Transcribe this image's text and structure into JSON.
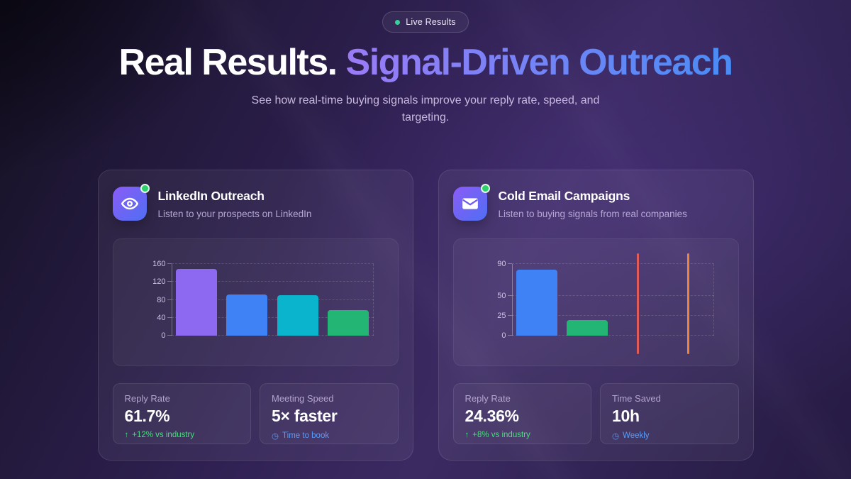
{
  "badge": {
    "label": "Live Results",
    "dot_color": "#34d399"
  },
  "heading": {
    "white_part": "Real Results.",
    "gradient_part": "Signal-Driven Outreach",
    "gradient_from": "#9b7bf7",
    "gradient_to": "#4a8cf5"
  },
  "subtitle": "See how real-time buying signals improve your reply rate, speed, and targeting.",
  "cards": [
    {
      "icon": "eye-icon",
      "status_color": "#2fd06b",
      "title": "LinkedIn Outreach",
      "subtitle": "Listen to your prospects on LinkedIn",
      "chart": {
        "type": "bar",
        "yticks": [
          0,
          40,
          80,
          120,
          160
        ],
        "ymax": 160,
        "items": [
          {
            "kind": "bar",
            "value": 150,
            "color": "#8c69f0"
          },
          {
            "kind": "bar",
            "value": 92,
            "color": "#3e82f5"
          },
          {
            "kind": "bar",
            "value": 91,
            "color": "#0ab4cd"
          },
          {
            "kind": "bar",
            "value": 57,
            "color": "#22b573"
          }
        ]
      },
      "stats": [
        {
          "label": "Reply Rate",
          "value": "61.7%",
          "note": "+12% vs industry",
          "note_icon": "arrow-up-icon",
          "note_color": "#4ade80"
        },
        {
          "label": "Meeting Speed",
          "value": "5× faster",
          "note": "Time to book",
          "note_icon": "clock-icon",
          "note_color": "#5b9bf7"
        }
      ]
    },
    {
      "icon": "mail-icon",
      "status_color": "#2fd06b",
      "title": "Cold Email Campaigns",
      "subtitle": "Listen to buying signals from real companies",
      "chart": {
        "type": "bar",
        "yticks": [
          0,
          25,
          50,
          90
        ],
        "ymax": 90,
        "items": [
          {
            "kind": "bar",
            "value": 83,
            "color": "#3e82f5"
          },
          {
            "kind": "bar",
            "value": 20,
            "color": "#22b573"
          },
          {
            "kind": "vline",
            "color": "#e25b5b"
          },
          {
            "kind": "vline",
            "color": "#ee8438"
          }
        ]
      },
      "stats": [
        {
          "label": "Reply Rate",
          "value": "24.36%",
          "note": "+8% vs industry",
          "note_icon": "arrow-up-icon",
          "note_color": "#4ade80"
        },
        {
          "label": "Time Saved",
          "value": "10h",
          "note": "Weekly",
          "note_icon": "clock-icon",
          "note_color": "#5b9bf7"
        }
      ]
    }
  ],
  "chart_data": [
    {
      "type": "bar",
      "title": "LinkedIn Outreach",
      "categories": [
        "",
        "",
        "",
        ""
      ],
      "values": [
        150,
        92,
        91,
        57
      ],
      "bar_colors": [
        "#8c69f0",
        "#3e82f5",
        "#0ab4cd",
        "#22b573"
      ],
      "xlabel": "",
      "ylabel": "",
      "yticks": [
        0,
        40,
        80,
        120,
        160
      ],
      "ylim": [
        0,
        160
      ],
      "grid": "dashed horizontal",
      "legend": "none"
    },
    {
      "type": "bar",
      "title": "Cold Email Campaigns",
      "categories": [
        "",
        ""
      ],
      "values": [
        83,
        20
      ],
      "bar_colors": [
        "#3e82f5",
        "#22b573"
      ],
      "annotations": [
        "vertical signal line #e25b5b",
        "vertical signal line #ee8438"
      ],
      "xlabel": "",
      "ylabel": "",
      "yticks": [
        0,
        25,
        50,
        90
      ],
      "ylim": [
        0,
        90
      ],
      "grid": "dashed horizontal",
      "legend": "none"
    }
  ]
}
